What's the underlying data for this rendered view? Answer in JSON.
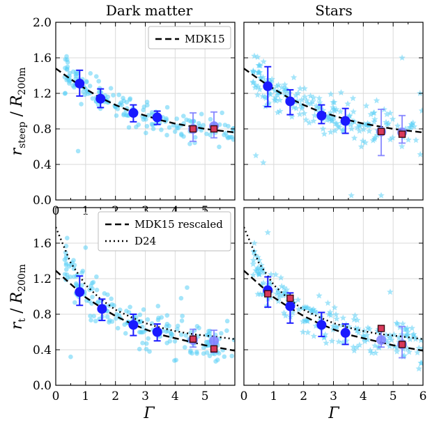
{
  "colors": {
    "scatter": "#5ad0f5",
    "median": "#1a1aff",
    "median_faded": "#7f7fff",
    "square_fill": "#d9395a",
    "square_edge": "#3a0a10",
    "grid": "#d9d9d9"
  },
  "column_titles": [
    "Dark matter",
    "Stars"
  ],
  "ylabel_top": "r_steep / R_200m",
  "ylabel_bottom": "r_t / R_200m",
  "xlabel": "Γ",
  "legend_top": [
    "MDK15"
  ],
  "legend_bottom": [
    "MDK15 rescaled",
    "D24"
  ],
  "chart_data": [
    {
      "type": "scatter",
      "panel": "top-left",
      "column": "Dark matter",
      "marker": "circle",
      "xlim": [
        0,
        6
      ],
      "ylim": [
        0,
        2.0
      ],
      "xticks": [
        "0",
        "1",
        "2",
        "3",
        "4",
        "5"
      ],
      "yticks": [
        "0.0",
        "0.4",
        "0.8",
        "1.2",
        "1.6",
        "2.0"
      ],
      "grid": true,
      "legend_position": "top-right",
      "curve": {
        "name": "MDK15",
        "style": "dashed",
        "x": [
          0,
          0.5,
          1,
          1.5,
          2,
          2.5,
          3,
          3.5,
          4,
          4.5,
          5,
          5.5,
          6
        ],
        "y": [
          1.48,
          1.36,
          1.25,
          1.15,
          1.07,
          1.0,
          0.95,
          0.9,
          0.86,
          0.83,
          0.8,
          0.78,
          0.76
        ]
      },
      "medians": [
        {
          "x": 0.8,
          "y": 1.31,
          "ylo": 1.17,
          "yhi": 1.46
        },
        {
          "x": 1.5,
          "y": 1.14,
          "ylo": 1.04,
          "yhi": 1.25
        },
        {
          "x": 2.6,
          "y": 0.98,
          "ylo": 0.88,
          "yhi": 1.07
        },
        {
          "x": 3.4,
          "y": 0.93,
          "ylo": 0.85,
          "yhi": 1.0
        },
        {
          "x": 4.6,
          "y": 0.8,
          "ylo": 0.66,
          "yhi": 0.98,
          "faded": true
        },
        {
          "x": 5.3,
          "y": 0.83,
          "ylo": 0.7,
          "yhi": 0.99,
          "faded": true
        }
      ],
      "squares": [
        {
          "x": 4.6,
          "y": 0.8
        },
        {
          "x": 5.3,
          "y": 0.8
        }
      ],
      "scatter_center": "curve",
      "scatter_spread": 0.09,
      "scatter_count": 190,
      "scatter_seed": 11,
      "outliers": [
        {
          "x": 0.75,
          "y": 0.55
        },
        {
          "x": 0.4,
          "y": 1.55
        },
        {
          "x": 5.95,
          "y": 0.68
        }
      ]
    },
    {
      "type": "scatter",
      "panel": "top-right",
      "column": "Stars",
      "marker": "star",
      "xlim": [
        0,
        6
      ],
      "ylim": [
        0,
        2.0
      ],
      "xticks": [],
      "yticks": [],
      "grid": true,
      "curve": {
        "name": "MDK15",
        "style": "dashed",
        "x": [
          0,
          0.5,
          1,
          1.5,
          2,
          2.5,
          3,
          3.5,
          4,
          4.5,
          5,
          5.5,
          6
        ],
        "y": [
          1.48,
          1.36,
          1.25,
          1.15,
          1.07,
          1.0,
          0.95,
          0.9,
          0.86,
          0.83,
          0.8,
          0.78,
          0.76
        ]
      },
      "medians": [
        {
          "x": 0.8,
          "y": 1.28,
          "ylo": 1.05,
          "yhi": 1.5
        },
        {
          "x": 1.55,
          "y": 1.11,
          "ylo": 0.96,
          "yhi": 1.24
        },
        {
          "x": 2.6,
          "y": 0.95,
          "ylo": 0.86,
          "yhi": 1.07
        },
        {
          "x": 3.4,
          "y": 0.89,
          "ylo": 0.75,
          "yhi": 1.03
        },
        {
          "x": 4.6,
          "y": 0.77,
          "ylo": 0.5,
          "yhi": 1.02,
          "faded": true
        },
        {
          "x": 5.3,
          "y": 0.76,
          "ylo": 0.64,
          "yhi": 0.95,
          "faded": true
        }
      ],
      "squares": [
        {
          "x": 4.6,
          "y": 0.77
        },
        {
          "x": 5.3,
          "y": 0.74
        }
      ],
      "scatter_center": "curve",
      "scatter_spread": 0.12,
      "scatter_count": 190,
      "scatter_seed": 23,
      "outliers": [
        {
          "x": 0.65,
          "y": 0.42
        },
        {
          "x": 0.4,
          "y": 0.5
        },
        {
          "x": 3.6,
          "y": 0.05
        },
        {
          "x": 4.6,
          "y": 0.05
        },
        {
          "x": 5.3,
          "y": 1.6
        },
        {
          "x": 0.35,
          "y": 1.62
        },
        {
          "x": 5.9,
          "y": 1.2
        }
      ]
    },
    {
      "type": "scatter",
      "panel": "bottom-left",
      "column": "Dark matter",
      "marker": "circle",
      "xlim": [
        0,
        6
      ],
      "ylim": [
        0,
        2.0
      ],
      "xticks": [
        "0",
        "1",
        "2",
        "3",
        "4",
        "5"
      ],
      "yticks": [
        "0.0",
        "0.4",
        "0.8",
        "1.2",
        "1.6",
        ""
      ],
      "grid": true,
      "legend_position": "top-right",
      "curve": {
        "name": "MDK15 rescaled",
        "style": "dashed",
        "x": [
          0,
          0.5,
          1,
          1.5,
          2,
          2.5,
          3,
          3.5,
          4,
          4.5,
          5,
          5.5,
          6
        ],
        "y": [
          1.29,
          1.14,
          0.99,
          0.88,
          0.78,
          0.7,
          0.63,
          0.57,
          0.53,
          0.49,
          0.45,
          0.42,
          0.39
        ]
      },
      "curve2": {
        "name": "D24",
        "style": "dotted",
        "x": [
          0,
          0.5,
          1,
          1.5,
          2,
          2.5,
          3,
          3.5,
          4,
          4.5,
          5,
          5.5,
          6
        ],
        "y": [
          1.78,
          1.38,
          1.13,
          0.97,
          0.85,
          0.77,
          0.7,
          0.65,
          0.61,
          0.58,
          0.56,
          0.54,
          0.52
        ]
      },
      "medians": [
        {
          "x": 0.8,
          "y": 1.05,
          "ylo": 0.9,
          "yhi": 1.23
        },
        {
          "x": 1.55,
          "y": 0.86,
          "ylo": 0.73,
          "yhi": 0.97
        },
        {
          "x": 2.6,
          "y": 0.68,
          "ylo": 0.56,
          "yhi": 0.8
        },
        {
          "x": 3.4,
          "y": 0.6,
          "ylo": 0.5,
          "yhi": 0.69
        },
        {
          "x": 4.6,
          "y": 0.51,
          "ylo": 0.43,
          "yhi": 0.63,
          "faded": true
        },
        {
          "x": 5.3,
          "y": 0.5,
          "ylo": 0.37,
          "yhi": 0.62,
          "faded": true
        }
      ],
      "squares": [
        {
          "x": 4.6,
          "y": 0.52
        },
        {
          "x": 5.3,
          "y": 0.41
        }
      ],
      "scatter_center": "between",
      "scatter_spread": 0.12,
      "scatter_count": 190,
      "scatter_seed": 37,
      "outliers": [
        {
          "x": 0.5,
          "y": 0.32
        },
        {
          "x": 1.0,
          "y": 1.55
        },
        {
          "x": 4.4,
          "y": 1.1
        },
        {
          "x": 4.2,
          "y": 0.98
        },
        {
          "x": 5.9,
          "y": 0.33
        }
      ]
    },
    {
      "type": "scatter",
      "panel": "bottom-right",
      "column": "Stars",
      "marker": "star",
      "xlim": [
        0,
        6
      ],
      "ylim": [
        0,
        2.0
      ],
      "xticks": [
        "0",
        "1",
        "2",
        "3",
        "4",
        "5",
        "6"
      ],
      "yticks": [],
      "grid": true,
      "curve": {
        "name": "MDK15 rescaled",
        "style": "dashed",
        "x": [
          0,
          0.5,
          1,
          1.5,
          2,
          2.5,
          3,
          3.5,
          4,
          4.5,
          5,
          5.5,
          6
        ],
        "y": [
          1.29,
          1.14,
          0.99,
          0.88,
          0.78,
          0.7,
          0.63,
          0.57,
          0.53,
          0.49,
          0.45,
          0.42,
          0.39
        ]
      },
      "curve2": {
        "name": "D24",
        "style": "dotted",
        "x": [
          0,
          0.5,
          1,
          1.5,
          2,
          2.5,
          3,
          3.5,
          4,
          4.5,
          5,
          5.5,
          6
        ],
        "y": [
          1.78,
          1.38,
          1.13,
          0.97,
          0.85,
          0.77,
          0.7,
          0.65,
          0.61,
          0.58,
          0.56,
          0.54,
          0.52
        ]
      },
      "medians": [
        {
          "x": 0.8,
          "y": 1.07,
          "ylo": 0.88,
          "yhi": 1.22
        },
        {
          "x": 1.55,
          "y": 0.89,
          "ylo": 0.7,
          "yhi": 1.04
        },
        {
          "x": 2.6,
          "y": 0.68,
          "ylo": 0.55,
          "yhi": 0.82
        },
        {
          "x": 3.4,
          "y": 0.59,
          "ylo": 0.46,
          "yhi": 0.69
        },
        {
          "x": 4.6,
          "y": 0.51,
          "ylo": 0.43,
          "yhi": 0.62,
          "faded": true
        },
        {
          "x": 5.3,
          "y": 0.46,
          "ylo": 0.31,
          "yhi": 0.66,
          "faded": true
        }
      ],
      "squares": [
        {
          "x": 0.8,
          "y": 1.03
        },
        {
          "x": 1.55,
          "y": 0.98
        },
        {
          "x": 4.6,
          "y": 0.64
        },
        {
          "x": 5.3,
          "y": 0.46
        }
      ],
      "scatter_center": "between",
      "scatter_spread": 0.11,
      "scatter_count": 190,
      "scatter_seed": 51,
      "outliers": [
        {
          "x": 0.8,
          "y": 1.72
        },
        {
          "x": 0.35,
          "y": 1.6
        },
        {
          "x": 5.95,
          "y": 0.25
        },
        {
          "x": 4.9,
          "y": 1.05
        }
      ]
    }
  ]
}
